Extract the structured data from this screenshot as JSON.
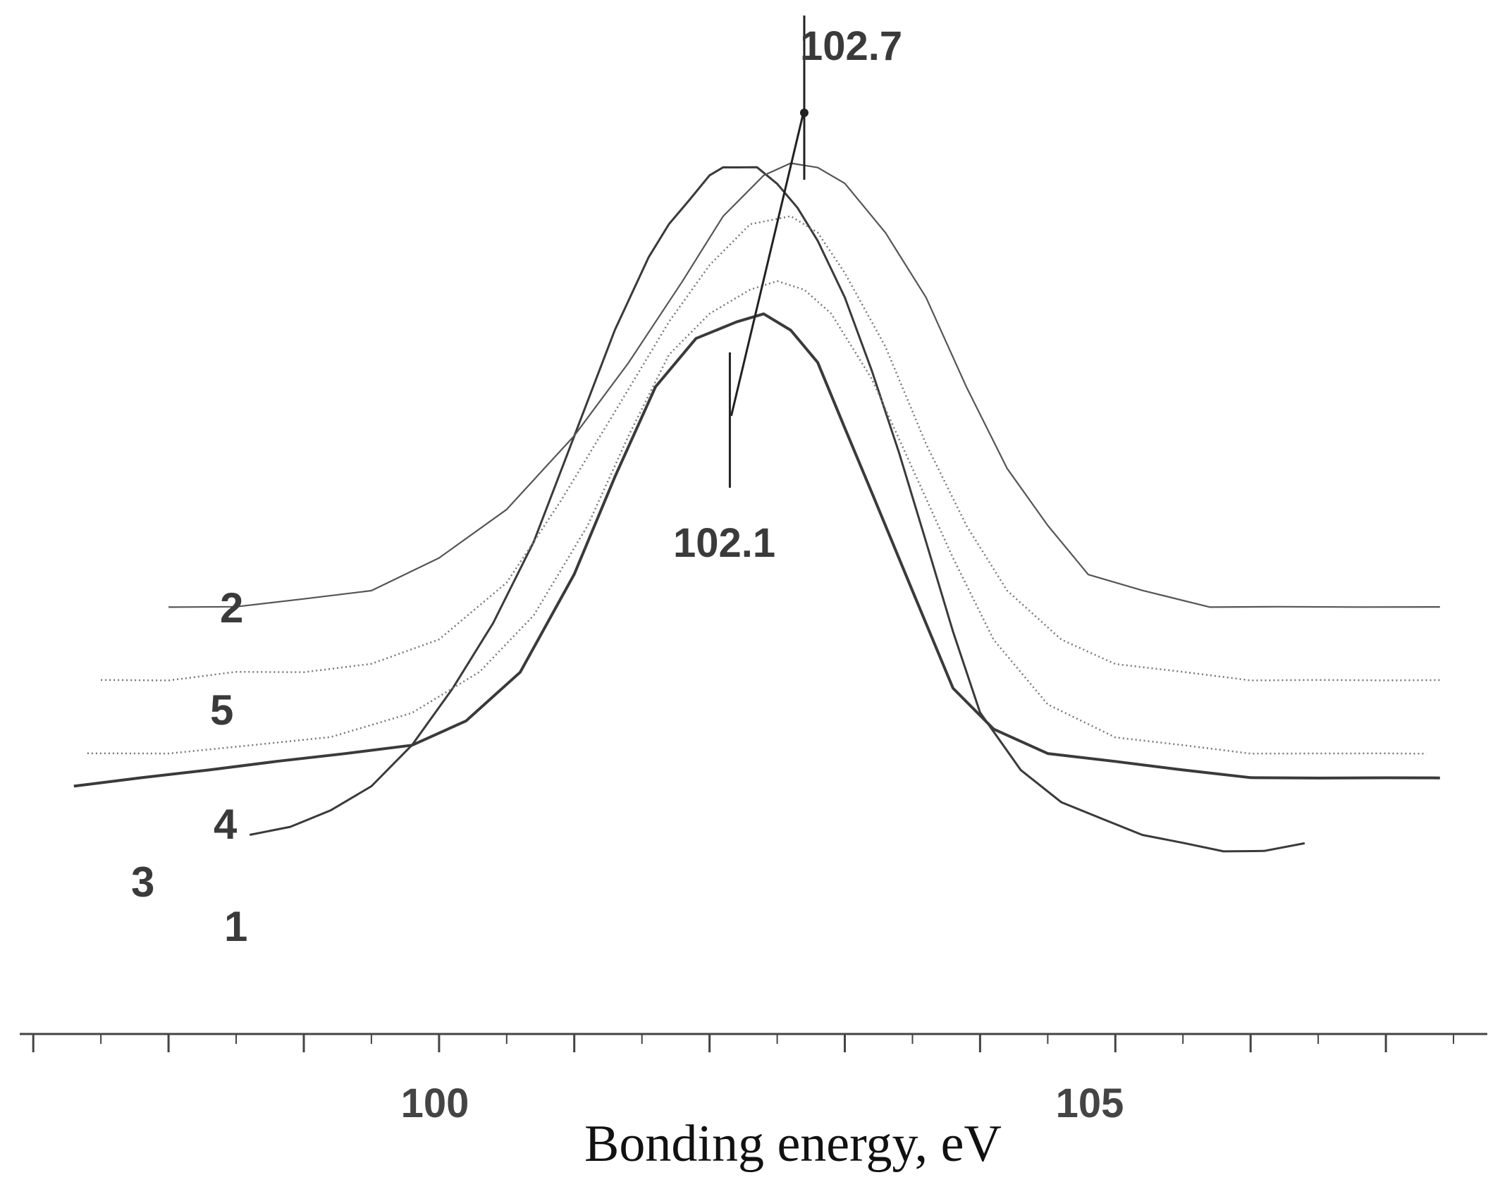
{
  "chart_data": {
    "type": "line",
    "title": "",
    "xlabel": "Bonding energy, eV",
    "ylabel": "",
    "xlim": [
      96.9,
      107.75
    ],
    "ylim": [
      0,
      100
    ],
    "x_ticks": [
      {
        "value": 100,
        "label": "100"
      },
      {
        "value": 105,
        "label": "105"
      }
    ],
    "grid": false,
    "series": [
      {
        "name": "1",
        "label": "1",
        "style": "solid",
        "color": "#3a3a3a",
        "width": 3,
        "x": [
          98.6,
          98.9,
          99.2,
          99.5,
          99.8,
          100.1,
          100.4,
          100.7,
          101.0,
          101.3,
          101.55,
          101.7,
          101.85,
          102.0,
          102.1,
          102.2,
          102.35,
          102.5,
          102.65,
          102.8,
          103.0,
          103.2,
          103.4,
          103.6,
          103.8,
          104.0,
          104.3,
          104.6,
          104.9,
          105.2,
          105.5,
          105.8,
          106.1,
          106.4
        ],
        "y": [
          10,
          11,
          13,
          16,
          21,
          28,
          36,
          46,
          59,
          72,
          81,
          85,
          88,
          91,
          92,
          92,
          92,
          90,
          87,
          83,
          76,
          67,
          57,
          46,
          35,
          25,
          18,
          14,
          12,
          10,
          9,
          8,
          8,
          9
        ]
      },
      {
        "name": "2",
        "label": "2",
        "style": "solid",
        "color": "#555555",
        "width": 2.2,
        "x": [
          98.0,
          98.5,
          99.0,
          99.5,
          100.0,
          100.5,
          101.0,
          101.4,
          101.8,
          102.1,
          102.4,
          102.6,
          102.8,
          103.0,
          103.3,
          103.6,
          103.9,
          104.2,
          104.5,
          104.8,
          105.2,
          105.7,
          106.2,
          106.8,
          107.4
        ],
        "y": [
          38,
          38,
          39,
          40,
          44,
          50,
          59,
          68,
          78,
          86,
          91,
          92.5,
          92,
          90,
          84,
          76,
          65,
          55,
          48,
          42,
          40,
          38,
          38,
          38,
          38
        ]
      },
      {
        "name": "3",
        "label": "3",
        "style": "solid",
        "color": "#3a3a3a",
        "width": 4,
        "x": [
          97.3,
          97.8,
          98.3,
          98.8,
          99.3,
          99.8,
          100.2,
          100.6,
          101.0,
          101.3,
          101.6,
          101.9,
          102.2,
          102.4,
          102.6,
          102.8,
          103.0,
          103.2,
          103.5,
          103.8,
          104.1,
          104.5,
          105.0,
          105.5,
          106.0,
          106.5,
          107.0,
          107.4
        ],
        "y": [
          16,
          17,
          18,
          19,
          20,
          21,
          24,
          30,
          42,
          54,
          65,
          71,
          73,
          74,
          72,
          68,
          60,
          52,
          40,
          28,
          23,
          20,
          19,
          18,
          17,
          17,
          17,
          17
        ]
      },
      {
        "name": "4",
        "label": "4",
        "style": "dotted",
        "color": "#777777",
        "width": 2.5,
        "x": [
          97.4,
          98.0,
          98.6,
          99.2,
          99.8,
          100.3,
          100.7,
          101.1,
          101.4,
          101.7,
          102.0,
          102.3,
          102.5,
          102.7,
          102.9,
          103.2,
          103.5,
          103.8,
          104.1,
          104.5,
          105.0,
          105.5,
          106.0,
          106.5,
          107.0,
          107.3
        ],
        "y": [
          20,
          20,
          21,
          22,
          25,
          30,
          37,
          48,
          59,
          69,
          74,
          77,
          78,
          77,
          74,
          66,
          55,
          44,
          34,
          26,
          22,
          21,
          20,
          20,
          20,
          20
        ]
      },
      {
        "name": "5",
        "label": "5",
        "style": "dotted",
        "color": "#777777",
        "width": 2.5,
        "x": [
          97.5,
          98.0,
          98.5,
          99.0,
          99.5,
          100.0,
          100.5,
          100.9,
          101.3,
          101.7,
          102.0,
          102.3,
          102.6,
          102.8,
          103.0,
          103.3,
          103.6,
          103.9,
          104.2,
          104.6,
          105.0,
          105.5,
          106.0,
          106.5,
          107.0,
          107.4
        ],
        "y": [
          29,
          29,
          30,
          30,
          31,
          34,
          41,
          51,
          62,
          73,
          80,
          85,
          86,
          84,
          79,
          70,
          58,
          48,
          40,
          34,
          31,
          30,
          29,
          29,
          29,
          29
        ]
      }
    ],
    "annotations": [
      {
        "text": "102.7",
        "x": 102.7
      },
      {
        "text": "102.1",
        "x": 102.15
      }
    ]
  }
}
